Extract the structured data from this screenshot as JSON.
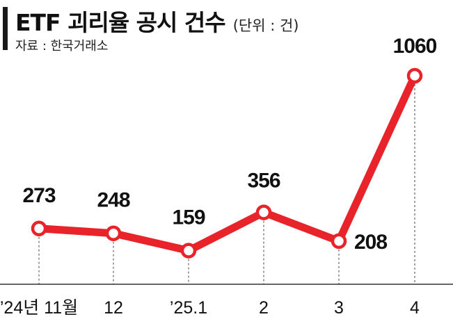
{
  "header": {
    "title": "ETF 괴리율 공시 건수",
    "unit": "(단위 : 건)",
    "source": "자료 : 한국거래소"
  },
  "colors": {
    "line": "#e8232a",
    "marker_fill": "#ffffff",
    "text": "#111111",
    "guide": "#666666"
  },
  "chart_data": {
    "type": "line",
    "title": "ETF 괴리율 공시 건수",
    "unit": "건",
    "categories": [
      "’24년 11월",
      "12",
      "’25.1",
      "2",
      "3",
      "4"
    ],
    "series": [
      {
        "values": [
          273,
          248,
          159,
          356,
          208,
          1060
        ]
      }
    ],
    "data_labels": [
      "273",
      "248",
      "159",
      "356",
      "208",
      "1060"
    ],
    "grid": false,
    "legend": "none",
    "ylim": [
      0,
      1100
    ]
  }
}
